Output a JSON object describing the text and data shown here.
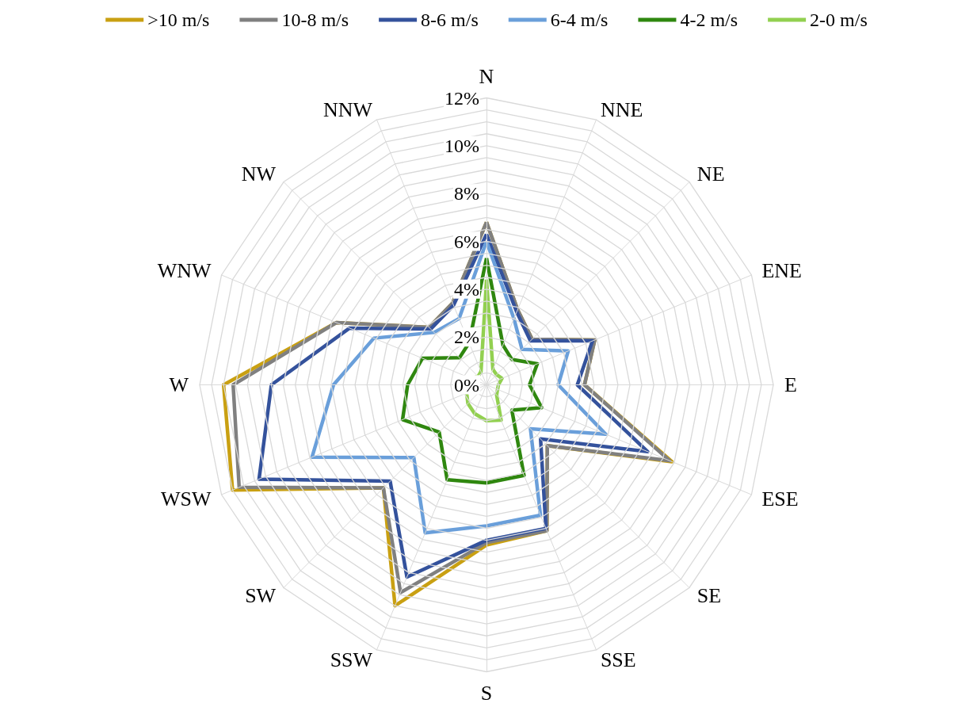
{
  "chart_data": {
    "type": "radar",
    "categories": [
      "N",
      "NNE",
      "NE",
      "ENE",
      "E",
      "ESE",
      "SE",
      "SSE",
      "S",
      "SSW",
      "SW",
      "WSW",
      "W",
      "WNW",
      "NW",
      "NNW"
    ],
    "ylim": [
      0,
      12
    ],
    "yticks": [
      {
        "value": 0,
        "label": "0%"
      },
      {
        "value": 2,
        "label": "2%"
      },
      {
        "value": 4,
        "label": "4%"
      },
      {
        "value": 6,
        "label": "6%"
      },
      {
        "value": 8,
        "label": "8%"
      },
      {
        "value": 10,
        "label": "10%"
      },
      {
        "value": 12,
        "label": "12%"
      }
    ],
    "grid": true,
    "legend": "top",
    "marker": "none",
    "series": [
      {
        "name": ">10 m/s",
        "color": "#c9a012",
        "values": [
          6.8,
          3.4,
          2.7,
          4.9,
          4.1,
          8.4,
          3.6,
          6.6,
          6.7,
          10.0,
          6.1,
          11.5,
          11.0,
          6.8,
          3.4,
          3.7
        ]
      },
      {
        "name": "10-8 m/s",
        "color": "#808080",
        "values": [
          6.8,
          3.4,
          2.7,
          4.9,
          4.1,
          8.3,
          3.6,
          6.6,
          6.6,
          9.4,
          6.1,
          11.2,
          10.6,
          6.8,
          3.4,
          3.7
        ]
      },
      {
        "name": "8-6 m/s",
        "color": "#34529c",
        "values": [
          6.3,
          3.3,
          2.6,
          4.8,
          3.8,
          7.3,
          3.2,
          6.5,
          6.5,
          8.7,
          5.7,
          10.3,
          9.0,
          6.2,
          3.3,
          3.6
        ]
      },
      {
        "name": "6-4 m/s",
        "color": "#6a9fda",
        "values": [
          6.0,
          3.0,
          2.1,
          3.7,
          3.0,
          5.4,
          2.6,
          5.9,
          5.9,
          6.7,
          4.3,
          7.9,
          6.4,
          5.1,
          3.1,
          3.0
        ]
      },
      {
        "name": "4-2 m/s",
        "color": "#2f870f",
        "values": [
          5.3,
          1.8,
          1.5,
          2.3,
          1.8,
          2.5,
          1.5,
          4.1,
          4.1,
          4.3,
          2.8,
          3.8,
          3.3,
          2.9,
          1.6,
          1.9
        ]
      },
      {
        "name": "2-0 m/s",
        "color": "#92d050",
        "values": [
          4.4,
          0.7,
          0.6,
          0.7,
          0.5,
          0.5,
          0.6,
          1.6,
          1.5,
          1.3,
          1.1,
          0.9,
          1.1,
          0.7,
          0.5,
          0.6
        ]
      }
    ]
  }
}
